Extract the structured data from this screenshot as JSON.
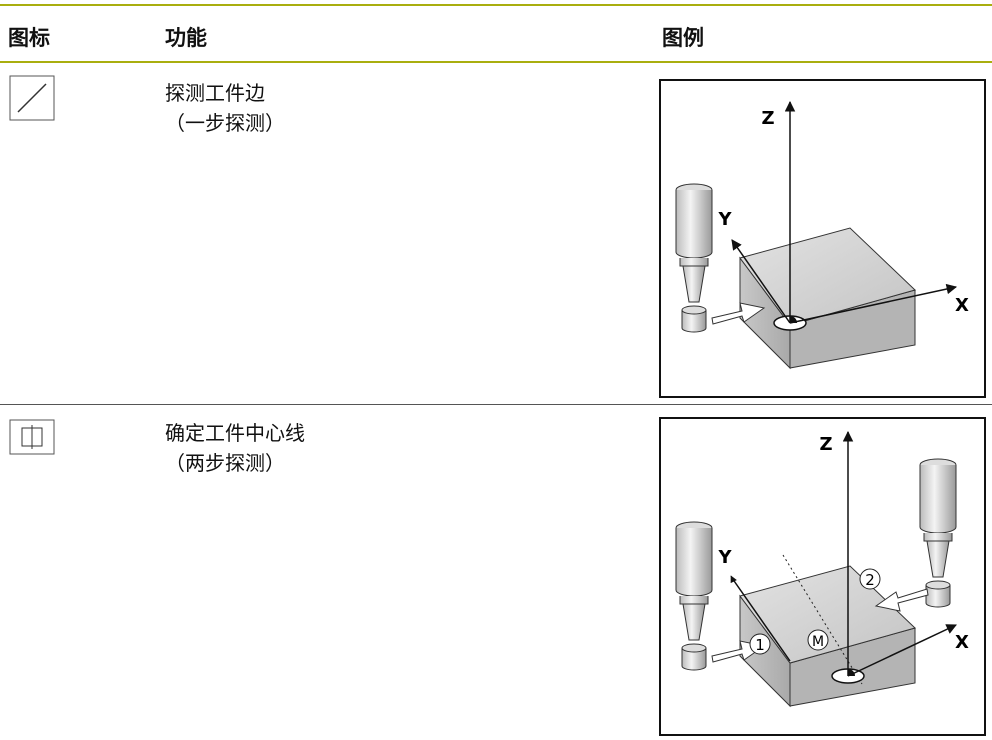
{
  "header": {
    "icon": "图标",
    "function": "功能",
    "figure": "图例"
  },
  "table": {
    "rows": [
      {
        "function": [
          "探测工件边",
          "（一步探测）"
        ],
        "figure_labels": {
          "z": "Z",
          "y": "Y",
          "x": "X"
        }
      },
      {
        "function": [
          "确定工件中心线",
          "（两步探测）"
        ],
        "figure_labels": {
          "z": "Z",
          "y": "Y",
          "x": "X",
          "first": "1",
          "second": "2",
          "middle": "M"
        }
      }
    ]
  }
}
